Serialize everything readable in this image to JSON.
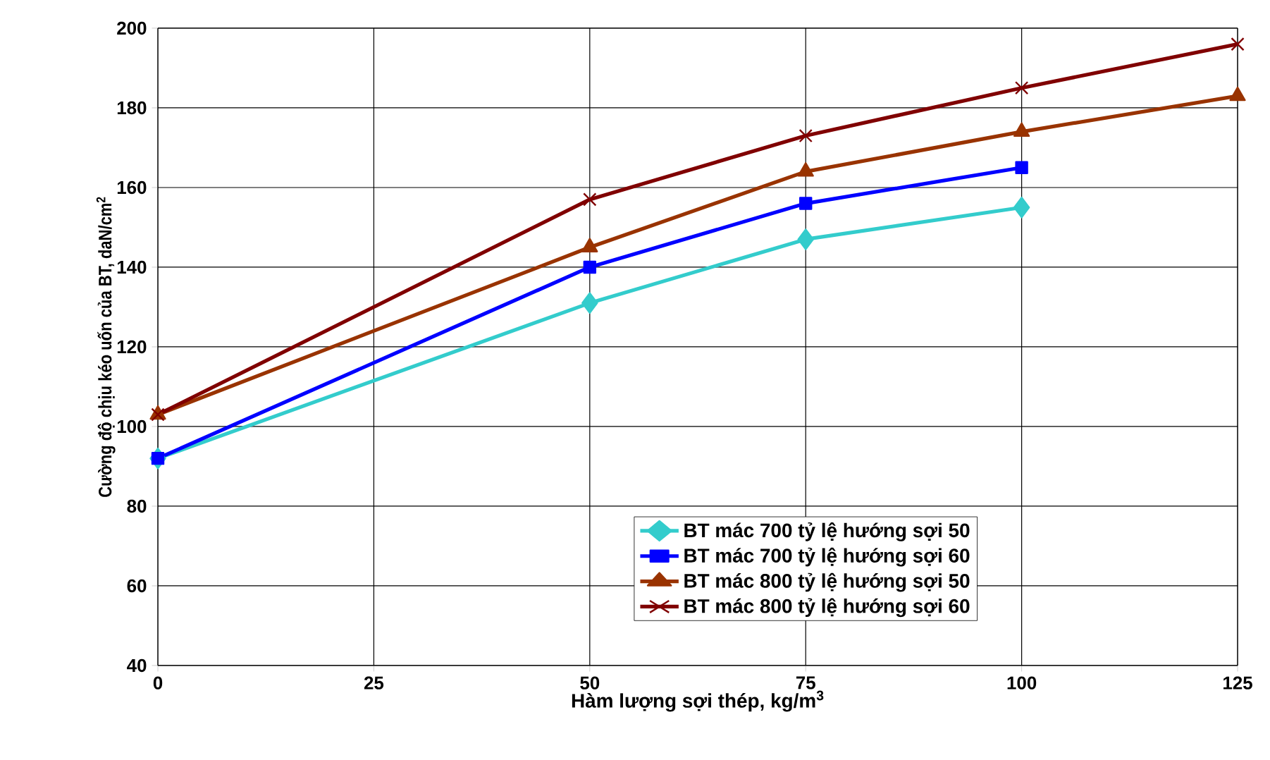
{
  "chart_data": {
    "type": "line",
    "xlabel": "Hàm lượng sợi thép, kg/m$^{3}$",
    "ylabel": "Cường độ chịu kéo uốn của BT, daN/cm$^{2}$",
    "xlim": [
      0,
      125
    ],
    "xticks": [
      0,
      25,
      50,
      75,
      100,
      125
    ],
    "ylim": [
      40,
      200
    ],
    "yticks": [
      40,
      60,
      80,
      100,
      120,
      140,
      160,
      180,
      200
    ],
    "grid": true,
    "legend": "bottom",
    "series": [
      {
        "name": "BT mác 700 tỷ lệ hướng sợi 50",
        "color": "#33cccc",
        "marker": "diamond",
        "x": [
          0,
          50,
          75,
          100
        ],
        "values": [
          92,
          131,
          147,
          155
        ]
      },
      {
        "name": "BT mác 700 tỷ lệ hướng sợi 60",
        "color": "#0000ff",
        "marker": "square",
        "x": [
          0,
          50,
          75,
          100
        ],
        "values": [
          92,
          140,
          156,
          165
        ]
      },
      {
        "name": "BT mác 800 tỷ lệ hướng sợi 50",
        "color": "#993300",
        "marker": "triangle",
        "x": [
          0,
          50,
          75,
          100,
          125
        ],
        "values": [
          103,
          145,
          164,
          174,
          183
        ]
      },
      {
        "name": "BT mác 800 tỷ lệ hướng sợi 60",
        "color": "#800000",
        "marker": "cross",
        "x": [
          0,
          50,
          75,
          100,
          125
        ],
        "values": [
          103,
          157,
          173,
          185,
          196
        ]
      }
    ]
  }
}
